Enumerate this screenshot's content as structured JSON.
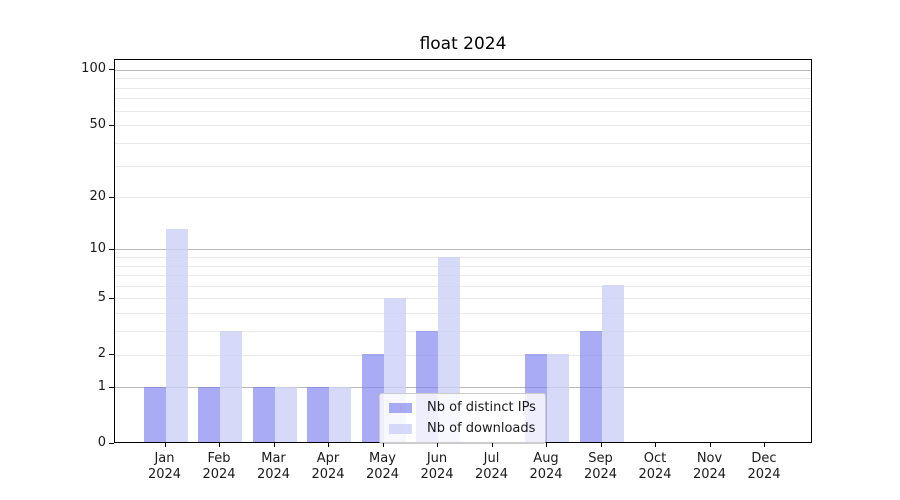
{
  "chart_data": {
    "type": "bar",
    "title": "float 2024",
    "categories": [
      "Jan 2024",
      "Feb 2024",
      "Mar 2024",
      "Apr 2024",
      "May 2024",
      "Jun 2024",
      "Jul 2024",
      "Aug 2024",
      "Sep 2024",
      "Oct 2024",
      "Nov 2024",
      "Dec 2024"
    ],
    "series": [
      {
        "name": "Nb of distinct IPs",
        "color": "rgba(123,127,238,0.65)",
        "solid_color": "#aaabf4",
        "values": [
          1,
          1,
          1,
          1,
          2,
          3,
          0,
          2,
          3,
          0,
          0,
          0
        ]
      },
      {
        "name": "Nb of downloads",
        "color": "rgba(205,207,248,0.8)",
        "solid_color": "#d9dafa",
        "values": [
          13,
          3,
          1,
          1,
          5,
          9,
          0,
          2,
          6,
          0,
          0,
          0
        ]
      }
    ],
    "y_axis": {
      "scale": "log10(1+x)",
      "tick_labels": [
        "100",
        "50",
        "20",
        "10",
        "5",
        "2",
        "1",
        "0"
      ],
      "tick_values": [
        100,
        50,
        20,
        10,
        5,
        2,
        1,
        0
      ],
      "major_gridlines": [
        1,
        10,
        100
      ],
      "minor_gridlines": [
        2,
        3,
        4,
        5,
        6,
        7,
        8,
        9,
        20,
        30,
        40,
        50,
        60,
        70,
        80,
        90
      ],
      "ylim": [
        0,
        115
      ]
    },
    "legend_position": "inside-bottom-center",
    "grid": true
  },
  "colors": {
    "grid_major": "#b9b9b9",
    "grid_minor": "#e9e9e9",
    "spine": "#000000",
    "text": "#1a1a1a",
    "legend_border": "#cccccc",
    "legend_bg": "rgba(255,255,255,0.8)"
  }
}
